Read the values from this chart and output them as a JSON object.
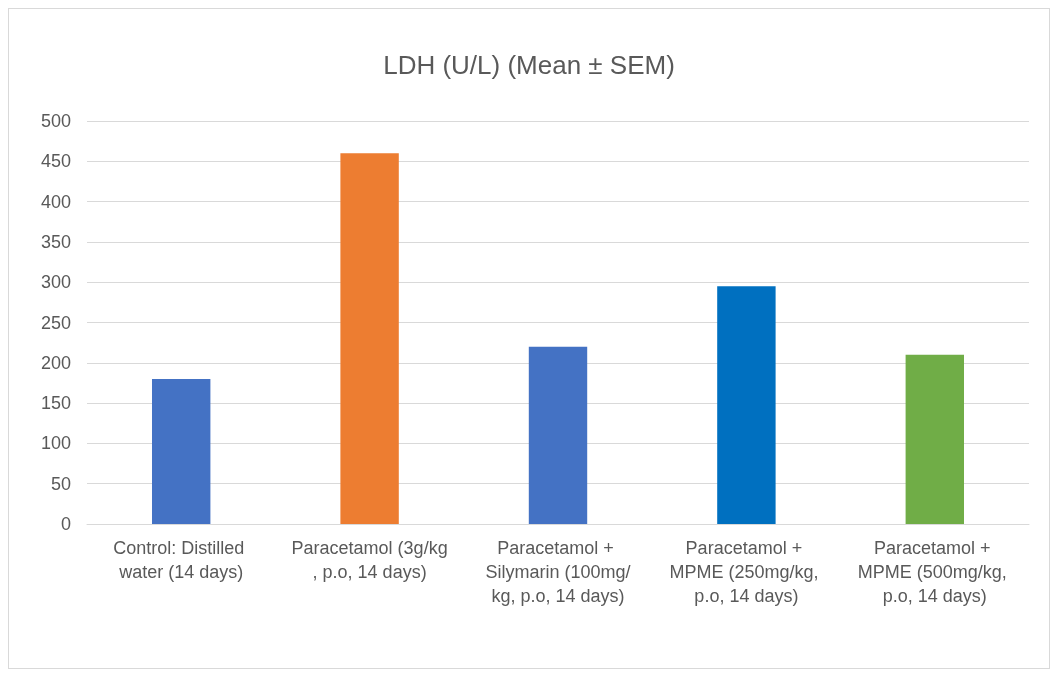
{
  "chart_data": {
    "type": "bar",
    "title": "LDH (U/L) (Mean ± SEM)",
    "categories": [
      "Control: Distilled water (14 days)",
      "Paracetamol (3g/kg, p.o, 14 days)",
      "Paracetamol + Silymarin (100mg/kg, p.o, 14 days)",
      "Paracetamol + MPME (250mg/kg, p.o, 14 days)",
      "Paracetamol + MPME (500mg/kg, p.o, 14 days)"
    ],
    "values": [
      180,
      460,
      220,
      295,
      210
    ],
    "colors": [
      "#4472c4",
      "#ed7d31",
      "#4472c4",
      "#0070c0",
      "#70ad47"
    ],
    "ylim": [
      0,
      500
    ],
    "yticks": [
      0,
      50,
      100,
      150,
      200,
      250,
      300,
      350,
      400,
      450,
      500
    ],
    "grid": "y"
  }
}
